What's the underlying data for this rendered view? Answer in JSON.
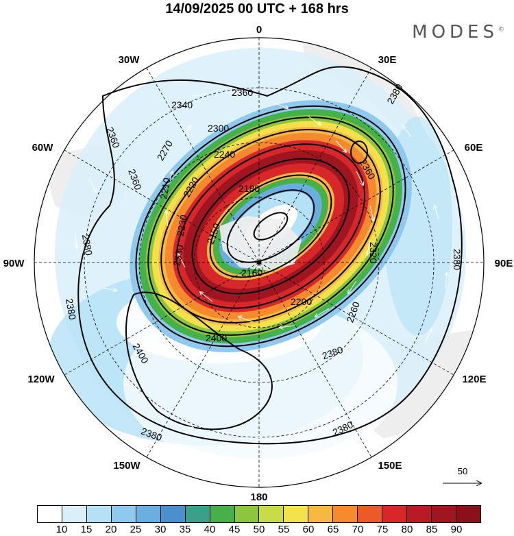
{
  "title": "14/09/2025  00 UTC  + 168 hrs",
  "brand": {
    "name": "MODES",
    "mark": "©"
  },
  "longitude_labels": [
    {
      "name": "lon-0",
      "text": "0"
    },
    {
      "name": "lon-30e",
      "text": "30E"
    },
    {
      "name": "lon-60e",
      "text": "60E"
    },
    {
      "name": "lon-90e",
      "text": "90E"
    },
    {
      "name": "lon-120e",
      "text": "120E"
    },
    {
      "name": "lon-150e",
      "text": "150E"
    },
    {
      "name": "lon-180",
      "text": "180"
    },
    {
      "name": "lon-150w",
      "text": "150W"
    },
    {
      "name": "lon-120w",
      "text": "120W"
    },
    {
      "name": "lon-90w",
      "text": "90W"
    },
    {
      "name": "lon-60w",
      "text": "60W"
    },
    {
      "name": "lon-30w",
      "text": "30W"
    }
  ],
  "contour_labels": [
    "2360",
    "2340",
    "2300",
    "2270",
    "2240",
    "2220",
    "2210",
    "2180",
    "2150",
    "2160",
    "2200",
    "2230",
    "2260",
    "2320",
    "2360",
    "2380",
    "2380",
    "2380",
    "2380",
    "2380",
    "2400",
    "2400",
    "2360",
    "2360",
    "2380",
    "2380",
    "2330"
  ],
  "colorbar": {
    "colors": [
      "#ffffff",
      "#d9f0fb",
      "#b4e1f6",
      "#8fc9ee",
      "#6aaee0",
      "#4a90cc",
      "#3aa08c",
      "#46b04a",
      "#8cc63f",
      "#c8dc4a",
      "#f4e04a",
      "#f6b843",
      "#f4892e",
      "#ec5a2a",
      "#d8272a",
      "#b81b26",
      "#a01620",
      "#8a111c"
    ],
    "ticks": [
      "10",
      "15",
      "20",
      "25",
      "30",
      "35",
      "40",
      "45",
      "50",
      "55",
      "60",
      "65",
      "70",
      "75",
      "80",
      "85",
      "90"
    ]
  },
  "reference_vector": {
    "label": "50"
  }
}
